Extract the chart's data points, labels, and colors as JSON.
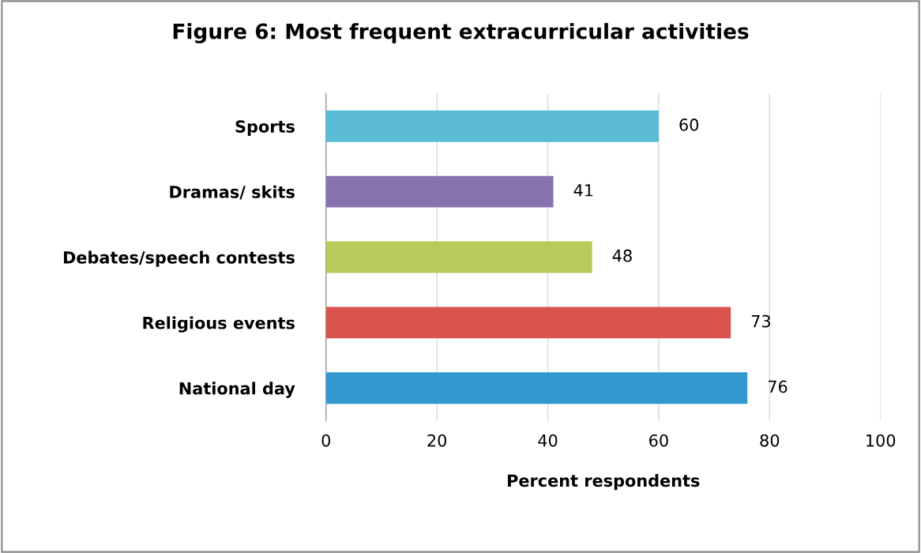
{
  "chart_data": {
    "type": "bar",
    "orientation": "horizontal",
    "title": "Figure 6: Most frequent extracurricular activities",
    "xlabel": "Percent respondents",
    "categories": [
      "Sports",
      "Dramas/ skits",
      "Debates/speech contests",
      "Religious events",
      "National day"
    ],
    "values": [
      60,
      41,
      48,
      73,
      76
    ],
    "colors": [
      "#5bbcd6",
      "#8872b0",
      "#b9c95c",
      "#d9534f",
      "#3398d0"
    ],
    "xlim": [
      0,
      100
    ],
    "xticks": [
      0,
      20,
      40,
      60,
      80,
      100
    ],
    "grid": "x",
    "data_labels": true,
    "legend": false
  }
}
